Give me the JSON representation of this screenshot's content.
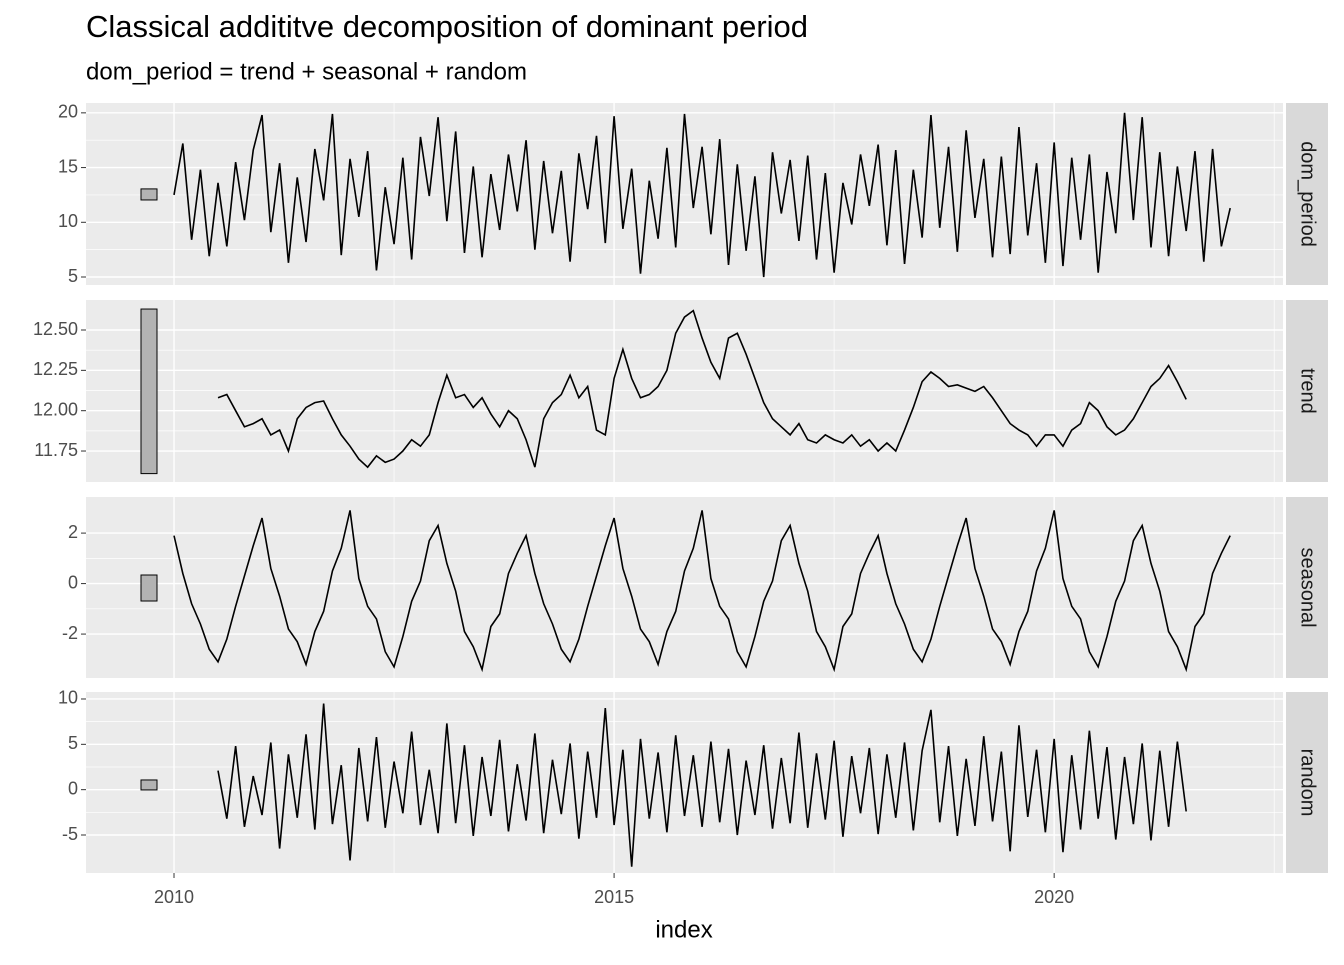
{
  "chart_data": {
    "type": "line",
    "title": "Classical addititve decomposition of dominant period",
    "subtitle": "dom_period = trend + seasonal + random",
    "xlabel": "index",
    "xlim": [
      2009.0,
      2022.6
    ],
    "xticks": [
      2010,
      2015,
      2020
    ],
    "xminor": [
      2012.5,
      2017.5,
      2022.5
    ],
    "grid": true,
    "color": "#000000",
    "x": [
      2010,
      2010.1,
      2010.2,
      2010.3,
      2010.4,
      2010.5,
      2010.6,
      2010.7,
      2010.8,
      2010.9,
      2011,
      2011.1,
      2011.2,
      2011.3,
      2011.4,
      2011.5,
      2011.6,
      2011.7,
      2011.8,
      2011.9,
      2012,
      2012.1,
      2012.2,
      2012.3,
      2012.4,
      2012.5,
      2012.6,
      2012.7,
      2012.8,
      2012.9,
      2013,
      2013.1,
      2013.2,
      2013.3,
      2013.4,
      2013.5,
      2013.6,
      2013.7,
      2013.8,
      2013.9,
      2014,
      2014.1,
      2014.2,
      2014.3,
      2014.4,
      2014.5,
      2014.6,
      2014.7,
      2014.8,
      2014.9,
      2015,
      2015.1,
      2015.2,
      2015.3,
      2015.4,
      2015.5,
      2015.6,
      2015.7,
      2015.8,
      2015.9,
      2016,
      2016.1,
      2016.2,
      2016.3,
      2016.4,
      2016.5,
      2016.6,
      2016.7,
      2016.8,
      2016.9,
      2017,
      2017.1,
      2017.2,
      2017.3,
      2017.4,
      2017.5,
      2017.6,
      2017.7,
      2017.8,
      2017.9,
      2018,
      2018.1,
      2018.2,
      2018.3,
      2018.4,
      2018.5,
      2018.6,
      2018.7,
      2018.8,
      2018.9,
      2019,
      2019.1,
      2019.2,
      2019.3,
      2019.4,
      2019.5,
      2019.6,
      2019.7,
      2019.8,
      2019.9,
      2020,
      2020.1,
      2020.2,
      2020.3,
      2020.4,
      2020.5,
      2020.6,
      2020.7,
      2020.8,
      2020.9,
      2021,
      2021.1,
      2021.2,
      2021.3,
      2021.4,
      2021.5,
      2021.6,
      2021.7,
      2021.8,
      2021.9,
      2022
    ],
    "panels": [
      {
        "label": "dom_period",
        "ylim": [
          4.27,
          20.9
        ],
        "yticks": [
          5,
          10,
          15,
          20
        ],
        "range_bar": [
          12.04,
          13.05
        ],
        "values": [
          12.5,
          17.2,
          8.4,
          14.8,
          6.9,
          13.6,
          7.8,
          15.5,
          10.2,
          16.6,
          19.8,
          9.1,
          15.4,
          6.3,
          14.1,
          8.2,
          16.7,
          12.0,
          19.9,
          7.0,
          15.8,
          10.5,
          16.5,
          5.6,
          13.2,
          8.0,
          15.9,
          6.6,
          17.8,
          12.4,
          19.6,
          10.1,
          18.3,
          7.2,
          15.1,
          6.8,
          14.4,
          9.3,
          16.2,
          11.0,
          17.5,
          7.5,
          15.6,
          9.0,
          14.7,
          6.4,
          16.3,
          11.2,
          17.9,
          8.1,
          19.7,
          9.4,
          14.9,
          5.3,
          13.8,
          8.5,
          16.8,
          7.7,
          19.9,
          11.3,
          16.9,
          8.9,
          17.6,
          6.1,
          15.3,
          7.4,
          14.2,
          5.0,
          16.4,
          10.8,
          15.7,
          8.3,
          16.1,
          6.6,
          14.5,
          5.4,
          13.6,
          9.8,
          16.2,
          11.5,
          17.1,
          7.9,
          16.6,
          6.2,
          14.8,
          8.6,
          19.8,
          9.5,
          16.9,
          7.3,
          18.4,
          10.4,
          15.8,
          6.8,
          16.0,
          7.1,
          18.7,
          8.8,
          15.4,
          6.3,
          17.3,
          6.0,
          15.9,
          8.4,
          16.2,
          5.4,
          14.6,
          9.0,
          20.0,
          10.2,
          19.6,
          7.7,
          16.4,
          6.9,
          15.1,
          9.2,
          16.5,
          6.4,
          16.7,
          7.8,
          11.3
        ]
      },
      {
        "label": "trend",
        "ylim": [
          11.558,
          12.686
        ],
        "yticks": [
          11.75,
          {
            "value": 12,
            "label": "12.00"
          },
          12.25,
          {
            "value": 12.5,
            "label": "12.50"
          }
        ],
        "range_bar": [
          11.61,
          12.63
        ],
        "values": [
          null,
          null,
          null,
          null,
          null,
          12.08,
          12.1,
          12.0,
          11.9,
          11.92,
          11.95,
          11.85,
          11.88,
          11.75,
          11.95,
          12.02,
          12.05,
          12.06,
          11.95,
          11.85,
          11.78,
          11.7,
          11.65,
          11.72,
          11.68,
          11.7,
          11.75,
          11.82,
          11.78,
          11.85,
          12.05,
          12.22,
          12.08,
          12.1,
          12.02,
          12.08,
          11.98,
          11.9,
          12.0,
          11.95,
          11.82,
          11.65,
          11.95,
          12.05,
          12.1,
          12.22,
          12.08,
          12.15,
          11.88,
          11.85,
          12.2,
          12.38,
          12.2,
          12.08,
          12.1,
          12.15,
          12.25,
          12.48,
          12.58,
          12.62,
          12.45,
          12.3,
          12.2,
          12.45,
          12.48,
          12.35,
          12.2,
          12.05,
          11.95,
          11.9,
          11.85,
          11.92,
          11.82,
          11.8,
          11.85,
          11.82,
          11.8,
          11.85,
          11.78,
          11.82,
          11.75,
          11.8,
          11.75,
          11.88,
          12.02,
          12.18,
          12.24,
          12.2,
          12.15,
          12.16,
          12.14,
          12.12,
          12.15,
          12.08,
          12.0,
          11.92,
          11.88,
          11.85,
          11.78,
          11.85,
          11.85,
          11.78,
          11.88,
          11.92,
          12.05,
          12.0,
          11.9,
          11.85,
          11.88,
          11.95,
          12.05,
          12.15,
          12.2,
          12.28,
          12.18,
          12.07,
          null,
          null,
          null,
          null,
          null
        ]
      },
      {
        "label": "seasonal",
        "ylim": [
          -3.74,
          3.43
        ],
        "yticks": [
          -2,
          0,
          2
        ],
        "range_bar": [
          -0.69,
          0.34
        ],
        "values": [
          1.9,
          0.4,
          -0.8,
          -1.6,
          -2.6,
          -3.1,
          -2.2,
          -0.9,
          0.3,
          1.5,
          2.6,
          0.6,
          -0.5,
          -1.8,
          -2.3,
          -3.2,
          -1.9,
          -1.1,
          0.5,
          1.4,
          2.9,
          0.2,
          -0.9,
          -1.4,
          -2.7,
          -3.3,
          -2.1,
          -0.7,
          0.1,
          1.7,
          2.3,
          0.8,
          -0.3,
          -1.9,
          -2.5,
          -3.4,
          -1.7,
          -1.2,
          0.4,
          1.2,
          1.9,
          0.4,
          -0.8,
          -1.6,
          -2.6,
          -3.1,
          -2.2,
          -0.9,
          0.3,
          1.5,
          2.6,
          0.6,
          -0.5,
          -1.8,
          -2.3,
          -3.2,
          -1.9,
          -1.1,
          0.5,
          1.4,
          2.9,
          0.2,
          -0.9,
          -1.4,
          -2.7,
          -3.3,
          -2.1,
          -0.7,
          0.1,
          1.7,
          2.3,
          0.8,
          -0.3,
          -1.9,
          -2.5,
          -3.4,
          -1.7,
          -1.2,
          0.4,
          1.2,
          1.9,
          0.4,
          -0.8,
          -1.6,
          -2.6,
          -3.1,
          -2.2,
          -0.9,
          0.3,
          1.5,
          2.6,
          0.6,
          -0.5,
          -1.8,
          -2.3,
          -3.2,
          -1.9,
          -1.1,
          0.5,
          1.4,
          2.9,
          0.2,
          -0.9,
          -1.4,
          -2.7,
          -3.3,
          -2.1,
          -0.7,
          0.1,
          1.7,
          2.3,
          0.8,
          -0.3,
          -1.9,
          -2.5,
          -3.4,
          -1.7,
          -1.2,
          0.4,
          1.2,
          1.9
        ]
      },
      {
        "label": "random",
        "ylim": [
          -9.19,
          10.77
        ],
        "yticks": [
          -5,
          0,
          5,
          10
        ],
        "range_bar": [
          -0.03,
          1.07
        ],
        "values": [
          null,
          null,
          null,
          null,
          null,
          2.1,
          -3.2,
          4.8,
          -4.1,
          1.5,
          -2.8,
          5.2,
          -6.5,
          3.9,
          -3.1,
          6.1,
          -4.4,
          9.5,
          -3.8,
          2.7,
          -7.8,
          4.6,
          -3.5,
          5.8,
          -4.2,
          3.1,
          -2.6,
          6.4,
          -3.9,
          2.2,
          -4.8,
          7.3,
          -3.7,
          4.9,
          -5.1,
          3.6,
          -2.9,
          5.5,
          -4.6,
          2.8,
          -3.4,
          6.2,
          -4.8,
          3.3,
          -2.7,
          5.1,
          -5.4,
          4.2,
          -3.1,
          9.0,
          -3.9,
          4.4,
          -8.5,
          5.6,
          -3.2,
          4.1,
          -4.7,
          6.0,
          -2.9,
          3.8,
          -4.1,
          5.3,
          -3.6,
          4.5,
          -5.0,
          3.2,
          -2.8,
          4.9,
          -4.3,
          3.5,
          -3.7,
          6.3,
          -4.2,
          4.0,
          -3.3,
          5.4,
          -5.2,
          3.7,
          -2.6,
          4.6,
          -4.9,
          3.9,
          -3.1,
          5.2,
          -4.5,
          4.3,
          8.8,
          -3.6,
          4.8,
          -5.1,
          3.4,
          -4.0,
          5.9,
          -3.5,
          4.2,
          -6.8,
          7.1,
          -3.0,
          4.4,
          -4.7,
          5.6,
          -6.9,
          3.8,
          -4.4,
          6.5,
          -3.2,
          4.7,
          -5.5,
          3.6,
          -3.8,
          5.1,
          -5.6,
          4.3,
          -4.1,
          5.3,
          -2.4,
          null,
          null,
          null,
          null,
          null
        ]
      }
    ]
  }
}
